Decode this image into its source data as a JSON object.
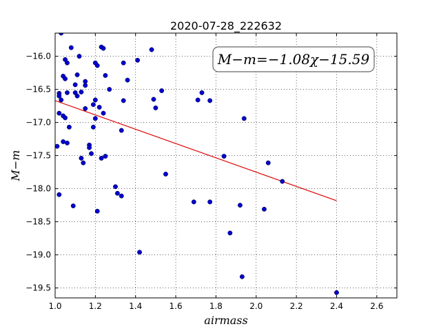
{
  "chart_data": {
    "type": "scatter",
    "title": "2020-07-28_222632",
    "xlabel": "airmass",
    "ylabel": "M−m",
    "xlim": [
      1.0,
      2.7
    ],
    "ylim": [
      -15.65,
      -19.65
    ],
    "y_inverted": true,
    "grid": true,
    "x_ticks": [
      1.0,
      1.2,
      1.4,
      1.6,
      1.8,
      2.0,
      2.2,
      2.4,
      2.6
    ],
    "x_tick_labels": [
      "1.0",
      "1.2",
      "1.4",
      "1.6",
      "1.8",
      "2.0",
      "2.2",
      "2.4",
      "2.6"
    ],
    "y_ticks": [
      -16.0,
      -16.5,
      -17.0,
      -17.5,
      -18.0,
      -18.5,
      -19.0,
      -19.5
    ],
    "y_tick_labels": [
      "−16.0",
      "−16.5",
      "−17.0",
      "−17.5",
      "−18.0",
      "−18.5",
      "−19.0",
      "−19.5"
    ],
    "annotation": "M−m=−1.08χ−15.59",
    "annotation_placement": "top-right",
    "marker_color": "#0000cc",
    "fit_color": "#dd0000",
    "fit_line": {
      "slope": -1.08,
      "intercept": -15.59,
      "x_range": [
        1.0,
        2.4
      ]
    },
    "points": [
      [
        1.01,
        -17.36
      ],
      [
        1.02,
        -16.86
      ],
      [
        1.02,
        -18.09
      ],
      [
        1.02,
        -16.56
      ],
      [
        1.02,
        -16.6
      ],
      [
        1.03,
        -15.65
      ],
      [
        1.03,
        -16.66
      ],
      [
        1.04,
        -17.29
      ],
      [
        1.04,
        -16.3
      ],
      [
        1.04,
        -16.9
      ],
      [
        1.05,
        -16.05
      ],
      [
        1.05,
        -16.34
      ],
      [
        1.05,
        -16.93
      ],
      [
        1.06,
        -16.1
      ],
      [
        1.06,
        -16.55
      ],
      [
        1.06,
        -17.31
      ],
      [
        1.07,
        -17.07
      ],
      [
        1.08,
        -15.87
      ],
      [
        1.09,
        -18.26
      ],
      [
        1.1,
        -16.43
      ],
      [
        1.1,
        -16.55
      ],
      [
        1.11,
        -16.28
      ],
      [
        1.11,
        -16.6
      ],
      [
        1.12,
        -16.0
      ],
      [
        1.13,
        -16.54
      ],
      [
        1.13,
        -17.54
      ],
      [
        1.14,
        -17.61
      ],
      [
        1.15,
        -16.38
      ],
      [
        1.15,
        -16.44
      ],
      [
        1.15,
        -16.79
      ],
      [
        1.17,
        -17.34
      ],
      [
        1.17,
        -17.38
      ],
      [
        1.18,
        -17.47
      ],
      [
        1.19,
        -17.07
      ],
      [
        1.19,
        -16.73
      ],
      [
        1.2,
        -16.94
      ],
      [
        1.2,
        -16.66
      ],
      [
        1.2,
        -16.1
      ],
      [
        1.21,
        -16.14
      ],
      [
        1.21,
        -18.34
      ],
      [
        1.22,
        -16.77
      ],
      [
        1.23,
        -17.54
      ],
      [
        1.23,
        -15.86
      ],
      [
        1.24,
        -15.88
      ],
      [
        1.24,
        -16.86
      ],
      [
        1.25,
        -16.29
      ],
      [
        1.25,
        -17.51
      ],
      [
        1.27,
        -16.5
      ],
      [
        1.3,
        -17.97
      ],
      [
        1.31,
        -18.07
      ],
      [
        1.33,
        -17.12
      ],
      [
        1.33,
        -18.11
      ],
      [
        1.34,
        -16.67
      ],
      [
        1.34,
        -16.1
      ],
      [
        1.36,
        -16.36
      ],
      [
        1.41,
        -16.06
      ],
      [
        1.42,
        -18.96
      ],
      [
        1.48,
        -15.9
      ],
      [
        1.49,
        -16.65
      ],
      [
        1.5,
        -16.78
      ],
      [
        1.53,
        -16.52
      ],
      [
        1.55,
        -17.78
      ],
      [
        1.69,
        -18.2
      ],
      [
        1.71,
        -16.66
      ],
      [
        1.73,
        -16.55
      ],
      [
        1.77,
        -16.67
      ],
      [
        1.77,
        -18.2
      ],
      [
        1.84,
        -17.51
      ],
      [
        1.87,
        -18.67
      ],
      [
        1.92,
        -18.25
      ],
      [
        1.93,
        -19.33
      ],
      [
        1.94,
        -16.94
      ],
      [
        2.04,
        -18.31
      ],
      [
        2.06,
        -17.61
      ],
      [
        2.13,
        -17.89
      ],
      [
        2.4,
        -19.57
      ]
    ]
  }
}
